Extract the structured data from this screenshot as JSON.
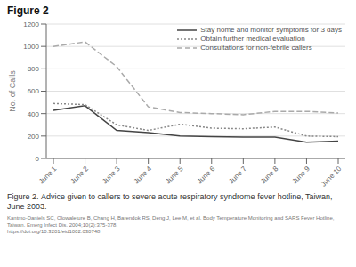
{
  "chart_data": {
    "type": "line",
    "title": "Figure 2",
    "y_label": "No. of Calls",
    "categories": [
      "June 1",
      "June 2",
      "June 3",
      "June 4",
      "June 5",
      "June 6",
      "June 7",
      "June 8",
      "June 9",
      "June 10"
    ],
    "series": [
      {
        "name": "Stay home and monitor symptoms for 3 days",
        "color": "#444444",
        "line_style": "solid",
        "values": [
          430,
          470,
          250,
          230,
          200,
          195,
          190,
          190,
          145,
          155
        ]
      },
      {
        "name": "Obtain further medical evaluation",
        "color": "#888888",
        "line_style": "dotted",
        "values": [
          490,
          480,
          300,
          250,
          305,
          270,
          265,
          280,
          200,
          195
        ]
      },
      {
        "name": "Consultations for non-febrile callers",
        "color": "#aaaaaa",
        "line_style": "dashed",
        "values": [
          1000,
          1040,
          820,
          460,
          410,
          400,
          390,
          420,
          420,
          405
        ]
      }
    ],
    "ylim": [
      0,
      1200
    ],
    "yticks": [
      0,
      200,
      400,
      600,
      800,
      1000,
      1200
    ],
    "grid": true,
    "legend": "upper right",
    "annotations": [
      "Figure 2. Advice given to callers to severe acute respiratory syndrome fever hotline, Taiwan, June 2003.",
      "Kantmo-Daniels SC, Olowaleture B, Chang H, Barendok RS, Deng J, Lee M, et al. Body Temperature Monitoring and SARS Fever Hotline, Taiwan. Emerg Infect Dis. 2004;10(2):375-378.",
      "https://doi.org/10.3201/eid1002.030748"
    ]
  }
}
